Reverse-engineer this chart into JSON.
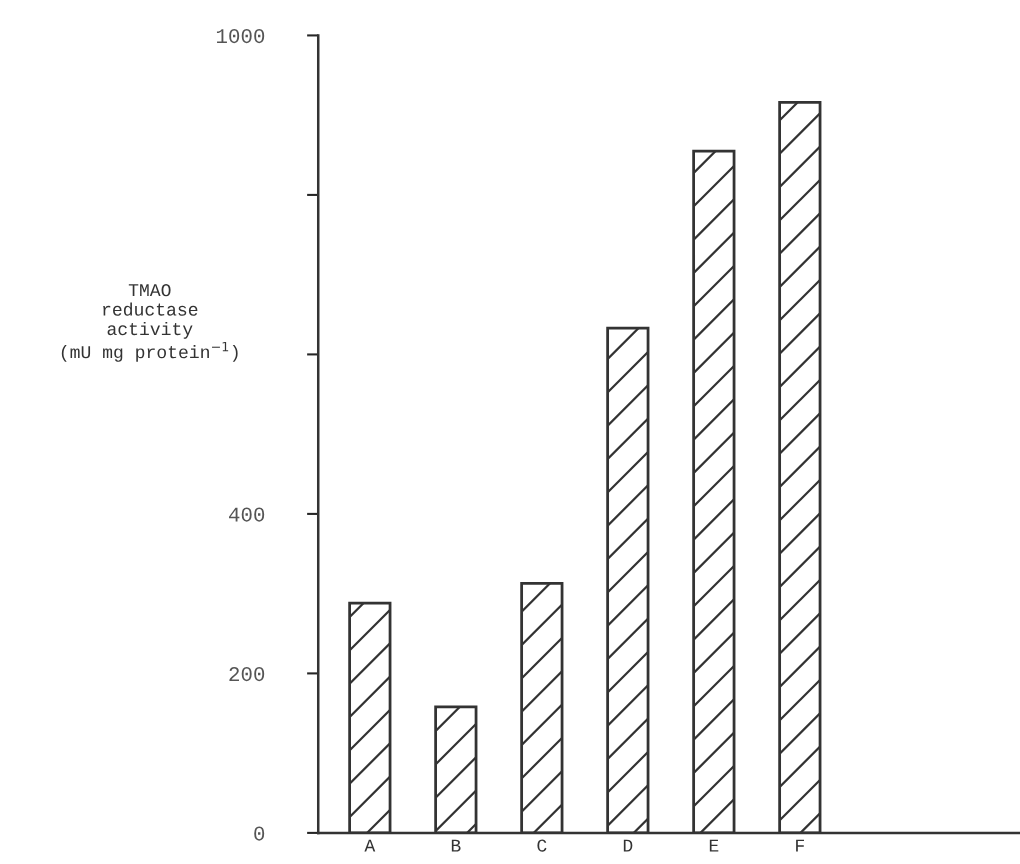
{
  "chart_data": {
    "type": "bar",
    "ylabel": "TMAO\nreductase\nactivity\n(mU mg protein$^{−1}$)",
    "categories": [
      "A",
      "B",
      "C",
      "D",
      "E",
      "F"
    ],
    "values": [
      288,
      158,
      313,
      633,
      855,
      916
    ],
    "color": "#333333",
    "ylim": [
      0,
      1000
    ],
    "yticks": [
      0,
      200,
      400,
      {
        "value": 600,
        "label": null
      },
      {
        "value": 800,
        "label": null
      },
      1000
    ],
    "grid": false
  }
}
